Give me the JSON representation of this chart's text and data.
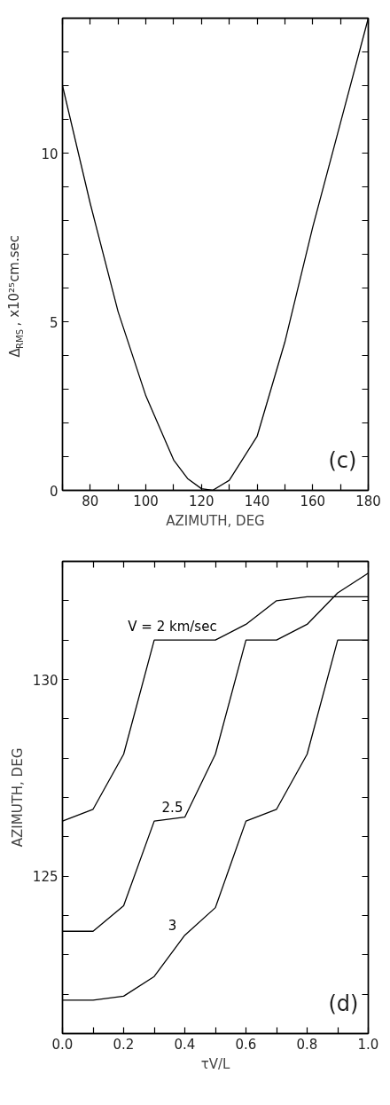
{
  "chart_data": [
    {
      "type": "line",
      "xlabel": "AZIMUTH, DEG",
      "ylabel": "Δ$_{RMS}$, x10²⁵cm.sec",
      "annotations": [
        "(c)"
      ],
      "x": [
        70,
        80,
        90,
        100,
        110,
        115,
        120,
        124,
        130,
        140,
        150,
        160,
        170,
        180
      ],
      "series": [
        {
          "color": "#000000",
          "values": [
            12,
            8.5,
            5.3,
            2.8,
            0.9,
            0.35,
            0.05,
            0,
            0.3,
            1.6,
            4.4,
            7.8,
            10.9,
            14
          ]
        }
      ],
      "xlim": [
        70,
        180
      ],
      "ylim": [
        0,
        14
      ],
      "xticks": [
        {
          "value": 70,
          "label": null
        },
        80,
        {
          "value": 90,
          "label": null
        },
        100,
        {
          "value": 110,
          "label": null
        },
        120,
        {
          "value": 130,
          "label": null
        },
        140,
        {
          "value": 150,
          "label": null
        },
        160,
        {
          "value": 170,
          "label": null
        },
        180
      ],
      "yticks": [
        0,
        {
          "value": 1,
          "label": null
        },
        {
          "value": 2,
          "label": null
        },
        {
          "value": 3,
          "label": null
        },
        {
          "value": 4,
          "label": null
        },
        5,
        {
          "value": 6,
          "label": null
        },
        {
          "value": 7,
          "label": null
        },
        {
          "value": 8,
          "label": null
        },
        {
          "value": 9,
          "label": null
        },
        10,
        {
          "value": 11,
          "label": null
        },
        {
          "value": 12,
          "label": null
        },
        {
          "value": 13,
          "label": null
        }
      ],
      "grid": false,
      "marker": "none",
      "line_style": "solid"
    },
    {
      "type": "line",
      "xlabel": "τV/L",
      "ylabel": "AZIMUTH, DEG",
      "annotations": [
        "(d)"
      ],
      "x": [
        0,
        0.1,
        0.2,
        0.3,
        0.4,
        0.5,
        0.6,
        0.7,
        0.8,
        0.9,
        1.0
      ],
      "series": [
        {
          "name": "V = 2 km/sec",
          "color": "#000000",
          "values": [
            126.4,
            126.7,
            128.1,
            131.0,
            131.0,
            131.0,
            131.4,
            132.0,
            132.1,
            132.1,
            132.1
          ]
        },
        {
          "name": "2.5",
          "color": "#000000",
          "values": [
            123.6,
            123.6,
            124.25,
            126.4,
            126.5,
            128.1,
            131.0,
            131.0,
            131.4,
            132.2,
            132.7
          ]
        },
        {
          "name": "3",
          "color": "#000000",
          "values": [
            121.85,
            121.85,
            121.95,
            122.45,
            123.5,
            124.2,
            126.4,
            126.7,
            128.1,
            131.0,
            131.0
          ]
        }
      ],
      "xlim": [
        0,
        1
      ],
      "ylim": [
        121,
        133
      ],
      "xticks": [
        {
          "value": 0,
          "label": "0.0"
        },
        {
          "value": 0.1,
          "label": null
        },
        0.2,
        {
          "value": 0.3,
          "label": null
        },
        0.4,
        {
          "value": 0.5,
          "label": null
        },
        0.6,
        {
          "value": 0.7,
          "label": null
        },
        0.8,
        {
          "value": 0.9,
          "label": null
        },
        {
          "value": 1,
          "label": "1.0"
        }
      ],
      "yticks": [
        {
          "value": 122,
          "label": null
        },
        {
          "value": 123,
          "label": null
        },
        {
          "value": 124,
          "label": null
        },
        125,
        {
          "value": 126,
          "label": null
        },
        {
          "value": 127,
          "label": null
        },
        {
          "value": 128,
          "label": null
        },
        {
          "value": 129,
          "label": null
        },
        130,
        {
          "value": 131,
          "label": null
        },
        {
          "value": 132,
          "label": null
        }
      ],
      "grid": false,
      "marker": "none",
      "line_style": "solid"
    }
  ]
}
